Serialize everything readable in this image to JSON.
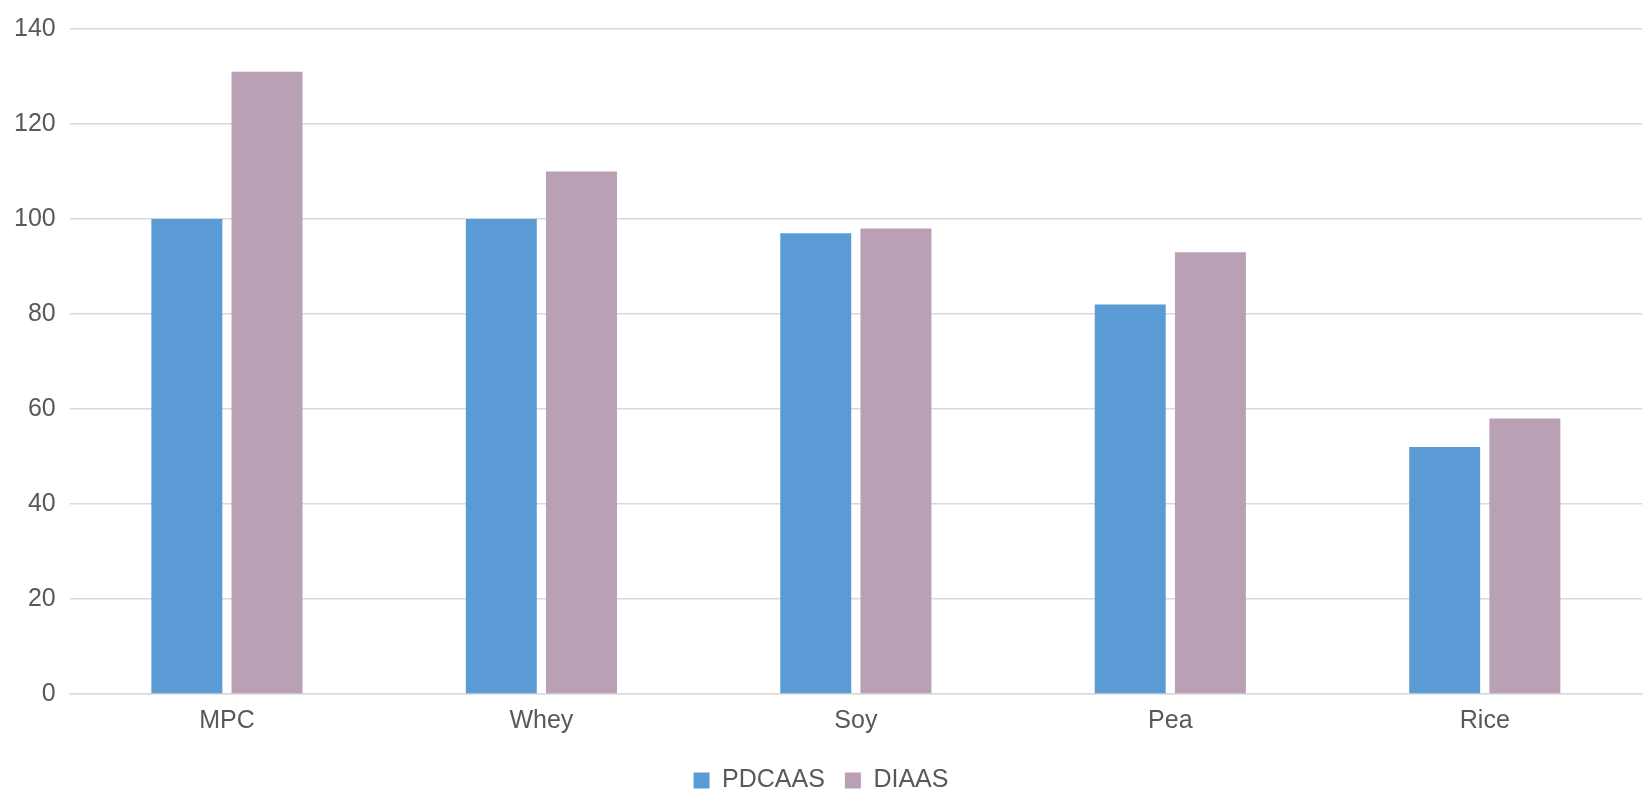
{
  "chart_data": {
    "type": "bar",
    "categories": [
      "MPC",
      "Whey",
      "Soy",
      "Pea",
      "Rice"
    ],
    "series": [
      {
        "name": "PDCAAS",
        "color": "#5b9bd5",
        "values": [
          100,
          100,
          97,
          82,
          52
        ]
      },
      {
        "name": "DIAAS",
        "color": "#b9a0b4",
        "values": [
          131,
          110,
          98,
          93,
          58
        ]
      }
    ],
    "ylim": [
      0,
      140
    ],
    "yticks": [
      0,
      20,
      40,
      60,
      80,
      100,
      120,
      140
    ],
    "grid": "y",
    "legend": "bottom"
  }
}
